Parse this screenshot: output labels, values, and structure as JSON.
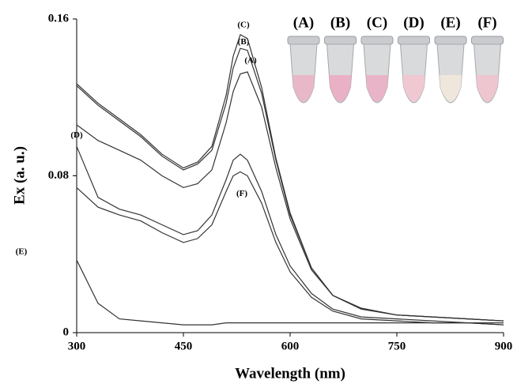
{
  "chart_data": {
    "type": "line",
    "x_label": "Wavelength (nm)",
    "y_label": "Ex (a. u.)",
    "x": [
      300,
      330,
      360,
      390,
      420,
      450,
      470,
      490,
      510,
      520,
      530,
      540,
      560,
      580,
      600,
      630,
      660,
      700,
      750,
      800,
      850,
      900
    ],
    "series": [
      {
        "name": "(A)",
        "color": "#333333",
        "values": [
          0.106,
          0.098,
          0.093,
          0.088,
          0.08,
          0.074,
          0.076,
          0.083,
          0.107,
          0.123,
          0.132,
          0.133,
          0.115,
          0.084,
          0.058,
          0.032,
          0.019,
          0.012,
          0.009,
          0.008,
          0.007,
          0.006
        ]
      },
      {
        "name": "(B)",
        "color": "#333333",
        "values": [
          0.126,
          0.116,
          0.108,
          0.1,
          0.09,
          0.083,
          0.086,
          0.093,
          0.117,
          0.135,
          0.145,
          0.144,
          0.122,
          0.088,
          0.06,
          0.033,
          0.019,
          0.012,
          0.009,
          0.008,
          0.007,
          0.006
        ]
      },
      {
        "name": "(C)",
        "color": "#333333",
        "values": [
          0.127,
          0.117,
          0.109,
          0.101,
          0.091,
          0.084,
          0.087,
          0.095,
          0.121,
          0.141,
          0.152,
          0.15,
          0.125,
          0.089,
          0.061,
          0.033,
          0.019,
          0.0125,
          0.009,
          0.008,
          0.007,
          0.006
        ]
      },
      {
        "name": "(D)",
        "color": "#333333",
        "values": [
          0.095,
          0.069,
          0.063,
          0.06,
          0.055,
          0.05,
          0.052,
          0.06,
          0.078,
          0.088,
          0.091,
          0.088,
          0.072,
          0.05,
          0.034,
          0.02,
          0.012,
          0.008,
          0.007,
          0.006,
          0.005,
          0.005
        ]
      },
      {
        "name": "(E)",
        "color": "#333333",
        "values": [
          0.037,
          0.015,
          0.007,
          0.006,
          0.005,
          0.004,
          0.004,
          0.004,
          0.005,
          0.005,
          0.005,
          0.005,
          0.005,
          0.005,
          0.005,
          0.005,
          0.005,
          0.005,
          0.005,
          0.005,
          0.005,
          0.004
        ]
      },
      {
        "name": "(F)",
        "color": "#333333",
        "values": [
          0.074,
          0.064,
          0.06,
          0.057,
          0.051,
          0.046,
          0.048,
          0.055,
          0.072,
          0.08,
          0.082,
          0.08,
          0.066,
          0.046,
          0.031,
          0.018,
          0.011,
          0.007,
          0.006,
          0.005,
          0.005,
          0.004
        ]
      }
    ],
    "xlim": [
      300,
      900
    ],
    "xticks": [
      300,
      450,
      600,
      750,
      900
    ],
    "ylim": [
      0,
      0.16
    ],
    "yticks": [
      0,
      0.08,
      0.16
    ]
  }
}
